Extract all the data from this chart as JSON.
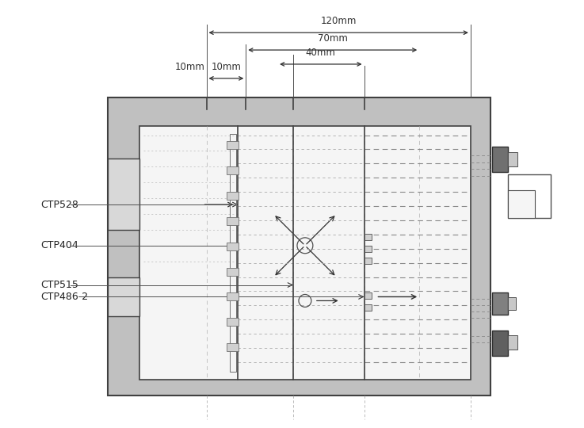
{
  "bg_color": "#ffffff",
  "fig_w": 7.37,
  "fig_h": 5.4,
  "dpi": 100,
  "colors": {
    "outer_gray": "#c0c0c0",
    "inner_white": "#f5f5f5",
    "dark_edge": "#404040",
    "med_gray": "#909090",
    "light_gray": "#d8d8d8",
    "dim_line": "#303030",
    "dash_gray": "#aaaaaa",
    "bolt_dark": "#606060",
    "bolt_light": "#c0c0c0",
    "hatch_gray": "#b8b8b8"
  },
  "labels": {
    "dim1": "120mm",
    "dim2": "70mm",
    "dim3": "40mm",
    "dim4": "10mm",
    "m1": "CTP528",
    "m2": "CTP404",
    "m3": "CTP515",
    "m4": "CTP486-2"
  }
}
